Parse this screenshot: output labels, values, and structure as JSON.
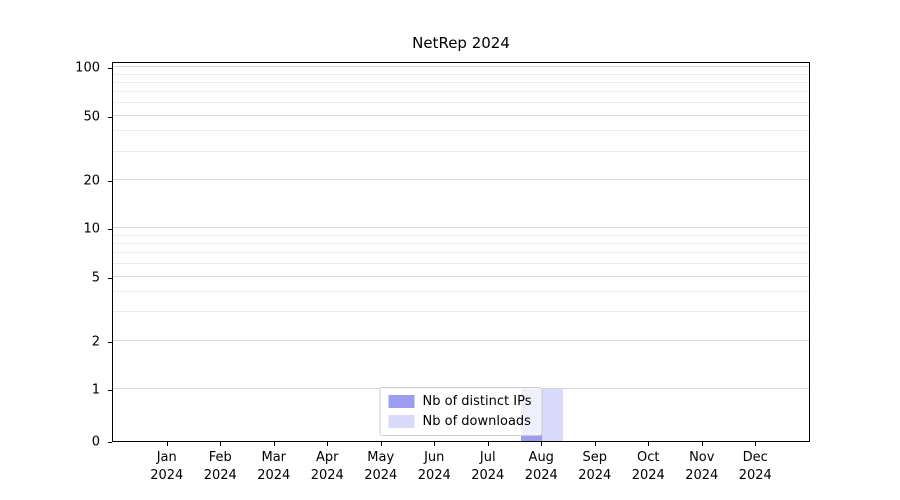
{
  "chart_data": {
    "type": "bar",
    "title": "NetRep 2024",
    "categories": [
      "Jan",
      "Feb",
      "Mar",
      "Apr",
      "May",
      "Jun",
      "Jul",
      "Aug",
      "Sep",
      "Oct",
      "Nov",
      "Dec"
    ],
    "year_label": "2024",
    "series": [
      {
        "name": "Nb of distinct IPs",
        "color": "#9d9df0",
        "values": [
          0,
          0,
          0,
          0,
          0,
          0,
          0,
          1,
          0,
          0,
          0,
          0
        ]
      },
      {
        "name": "Nb of downloads",
        "color": "#d9d9fb",
        "values": [
          0,
          0,
          0,
          0,
          0,
          0,
          0,
          1,
          0,
          0,
          0,
          0
        ]
      }
    ],
    "yaxis": {
      "scale": "symlog",
      "major_ticks": [
        0,
        1,
        2,
        5,
        10,
        20,
        50,
        100
      ],
      "minor_ticks": [
        3,
        4,
        6,
        7,
        8,
        9,
        30,
        40,
        60,
        70,
        80,
        90
      ],
      "ylim": [
        0,
        110
      ]
    },
    "legend": {
      "position": "lower center",
      "entries": [
        "Nb of distinct IPs",
        "Nb of downloads"
      ]
    },
    "grid": {
      "major_color": "#d7d7d7",
      "minor_color": "#ececec"
    }
  }
}
